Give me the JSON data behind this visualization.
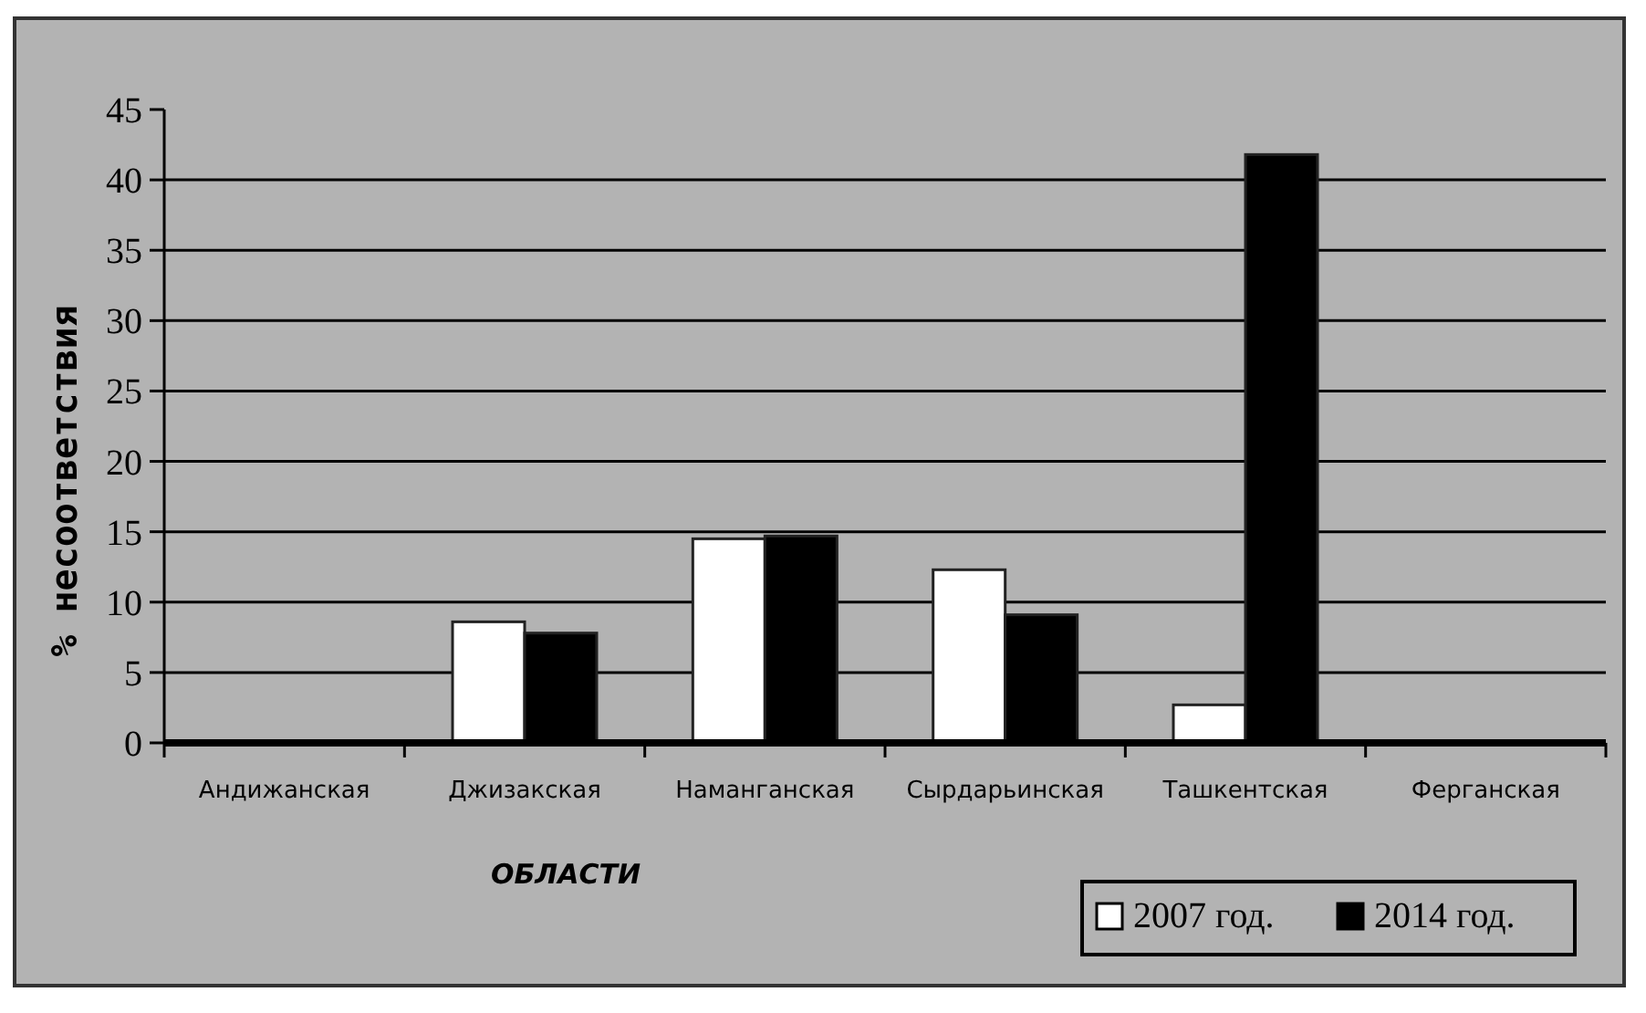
{
  "chart_data": {
    "type": "bar",
    "xlabel": "ОБЛАСТИ",
    "ylabel": "% несоответствия",
    "categories": [
      "Андижанская",
      "Джизакская",
      "Наманганская",
      "Сырдарьинская",
      "Ташкентская",
      "Ферганская"
    ],
    "series": [
      {
        "name": "2007 год.",
        "color": "#ffffff",
        "values": [
          0,
          8.6,
          14.5,
          12.3,
          2.7,
          0
        ]
      },
      {
        "name": "2014 год.",
        "color": "#000000",
        "values": [
          0,
          7.8,
          14.7,
          9.1,
          41.8,
          0
        ]
      }
    ],
    "ylim": [
      0,
      45
    ],
    "yticks": [
      0,
      5,
      10,
      15,
      20,
      25,
      30,
      35,
      40,
      45
    ],
    "grid": "y",
    "legend": "bottom right"
  }
}
